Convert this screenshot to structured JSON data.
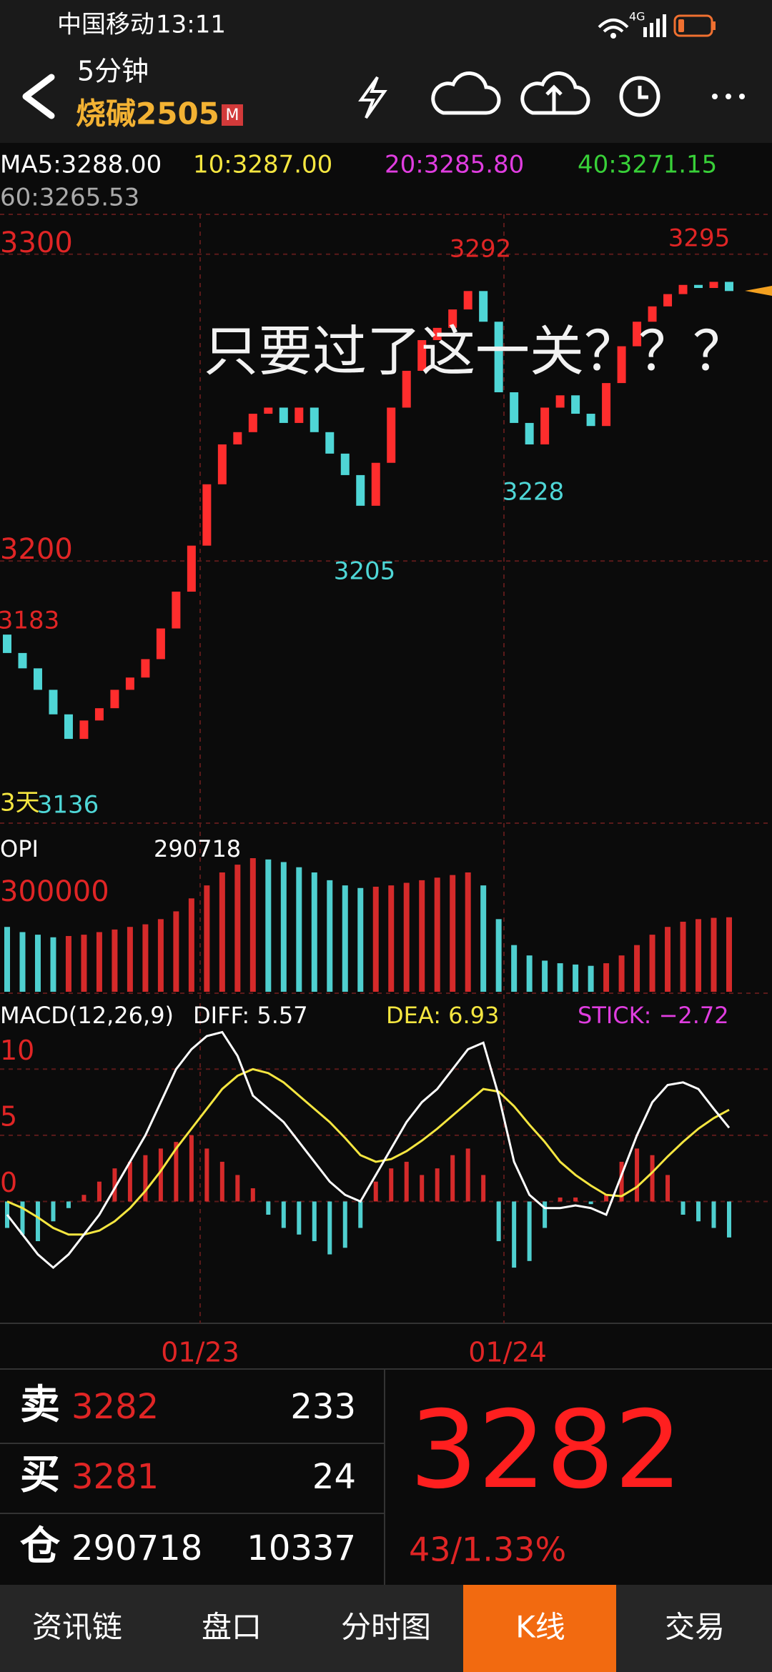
{
  "status_bar": {
    "carrier": "中国移动",
    "time": "13:11",
    "network": "4G"
  },
  "header": {
    "period": "5分钟",
    "symbol": "烧碱2505",
    "badge": "M"
  },
  "ma_legend": [
    "MA5:3288.00",
    "10:3287.00",
    "20:3285.80",
    "40:3271.15",
    "60:3265.53"
  ],
  "kline": {
    "ylim": [
      3115,
      3313
    ],
    "yticks": [
      3300,
      3200
    ],
    "up_color": "#ff2d2d",
    "down_color": "#4fd6d6",
    "opens": [
      3176,
      3170,
      3165,
      3158,
      3150,
      3142,
      3148,
      3152,
      3158,
      3162,
      3168,
      3178,
      3190,
      3205,
      3225,
      3238,
      3242,
      3248,
      3250,
      3245,
      3250,
      3242,
      3235,
      3228,
      3218,
      3232,
      3250,
      3262,
      3272,
      3276,
      3282,
      3288,
      3278,
      3255,
      3245,
      3238,
      3250,
      3254,
      3248,
      3244,
      3258,
      3270,
      3278,
      3283,
      3287,
      3290,
      3289,
      3291
    ],
    "closes": [
      3170,
      3165,
      3158,
      3150,
      3142,
      3148,
      3152,
      3158,
      3162,
      3168,
      3178,
      3190,
      3205,
      3225,
      3238,
      3242,
      3248,
      3250,
      3245,
      3250,
      3242,
      3235,
      3228,
      3218,
      3232,
      3250,
      3262,
      3272,
      3276,
      3282,
      3288,
      3278,
      3255,
      3245,
      3238,
      3250,
      3254,
      3248,
      3244,
      3258,
      3270,
      3278,
      3283,
      3287,
      3290,
      3289,
      3291,
      3288
    ],
    "annotations": [
      "3292",
      "3295",
      "3228",
      "3205",
      "3183",
      "3136"
    ],
    "overlay_text": "只要过了这一关？？？",
    "period_label": "3天"
  },
  "opi": {
    "title": "OPI",
    "current": "290718",
    "ylim": [
      262000,
      324800
    ],
    "yticks": [
      300000
    ],
    "values": [
      287000,
      285000,
      284000,
      283000,
      283500,
      284000,
      285000,
      286000,
      287000,
      288000,
      290000,
      293000,
      298000,
      303000,
      308000,
      311000,
      313500,
      313000,
      312000,
      310000,
      308000,
      305000,
      303000,
      302000,
      302500,
      303000,
      304000,
      305000,
      306000,
      307000,
      308000,
      303000,
      290000,
      280000,
      276000,
      274000,
      273000,
      272500,
      272000,
      273000,
      276000,
      280000,
      284000,
      287000,
      289000,
      290000,
      290500,
      290718
    ]
  },
  "macd": {
    "title": "MACD(12,26,9)",
    "diff_label": "DIFF: 5.57",
    "dea_label": "DEA: 6.93",
    "stick_label": "STICK: −2.72",
    "ylim": [
      -9.1,
      15.2
    ],
    "yticks": [
      10,
      5,
      0
    ],
    "sticks": [
      -2,
      -2.5,
      -3,
      -1.5,
      -0.5,
      0.5,
      1.5,
      2.5,
      3,
      3.5,
      4,
      4.5,
      5,
      4,
      3,
      2,
      1,
      -1,
      -2,
      -2.5,
      -3,
      -4,
      -3.5,
      -2,
      1.5,
      2.5,
      3,
      2,
      2.5,
      3.5,
      4,
      2,
      -3,
      -5,
      -4.5,
      -2,
      0.3,
      0.3,
      -0.2,
      0.5,
      3,
      4,
      3.5,
      2,
      -1,
      -1.5,
      -2,
      -2.72
    ],
    "diff": [
      -1,
      -2.5,
      -4,
      -5,
      -4,
      -2.5,
      -1,
      1,
      3,
      5,
      7.5,
      10,
      11.5,
      12.5,
      12.8,
      11,
      8,
      7,
      6,
      4.5,
      3,
      1.5,
      0.5,
      0,
      2,
      4,
      6,
      7.5,
      8.5,
      10,
      11.5,
      12,
      8,
      3,
      0.5,
      -0.5,
      -0.5,
      -0.3,
      -0.5,
      -1,
      2,
      5,
      7.5,
      8.8,
      9,
      8.5,
      7,
      5.57
    ],
    "dea": [
      0,
      -0.5,
      -1.2,
      -2,
      -2.5,
      -2.5,
      -2.2,
      -1.5,
      -0.5,
      0.8,
      2.3,
      4,
      5.5,
      7,
      8.5,
      9.5,
      10,
      9.7,
      9,
      8,
      7,
      6,
      4.8,
      3.5,
      3,
      3.2,
      3.8,
      4.6,
      5.5,
      6.5,
      7.5,
      8.5,
      8.3,
      7.2,
      5.8,
      4.5,
      3,
      2,
      1.2,
      0.5,
      0.4,
      1.1,
      2.2,
      3.4,
      4.5,
      5.5,
      6.3,
      6.93
    ]
  },
  "x_axis": [
    "01/23",
    "01/24"
  ],
  "quote": {
    "ask": {
      "label": "卖",
      "price": "3282",
      "volume": "233"
    },
    "bid": {
      "label": "买",
      "price": "3281",
      "volume": "24"
    },
    "position": {
      "label": "仓",
      "value": "290718",
      "change": "10337"
    },
    "last": "3282",
    "change": "43/1.33%"
  },
  "tabs": [
    "资讯链",
    "盘口",
    "分时图",
    "K线",
    "交易"
  ]
}
